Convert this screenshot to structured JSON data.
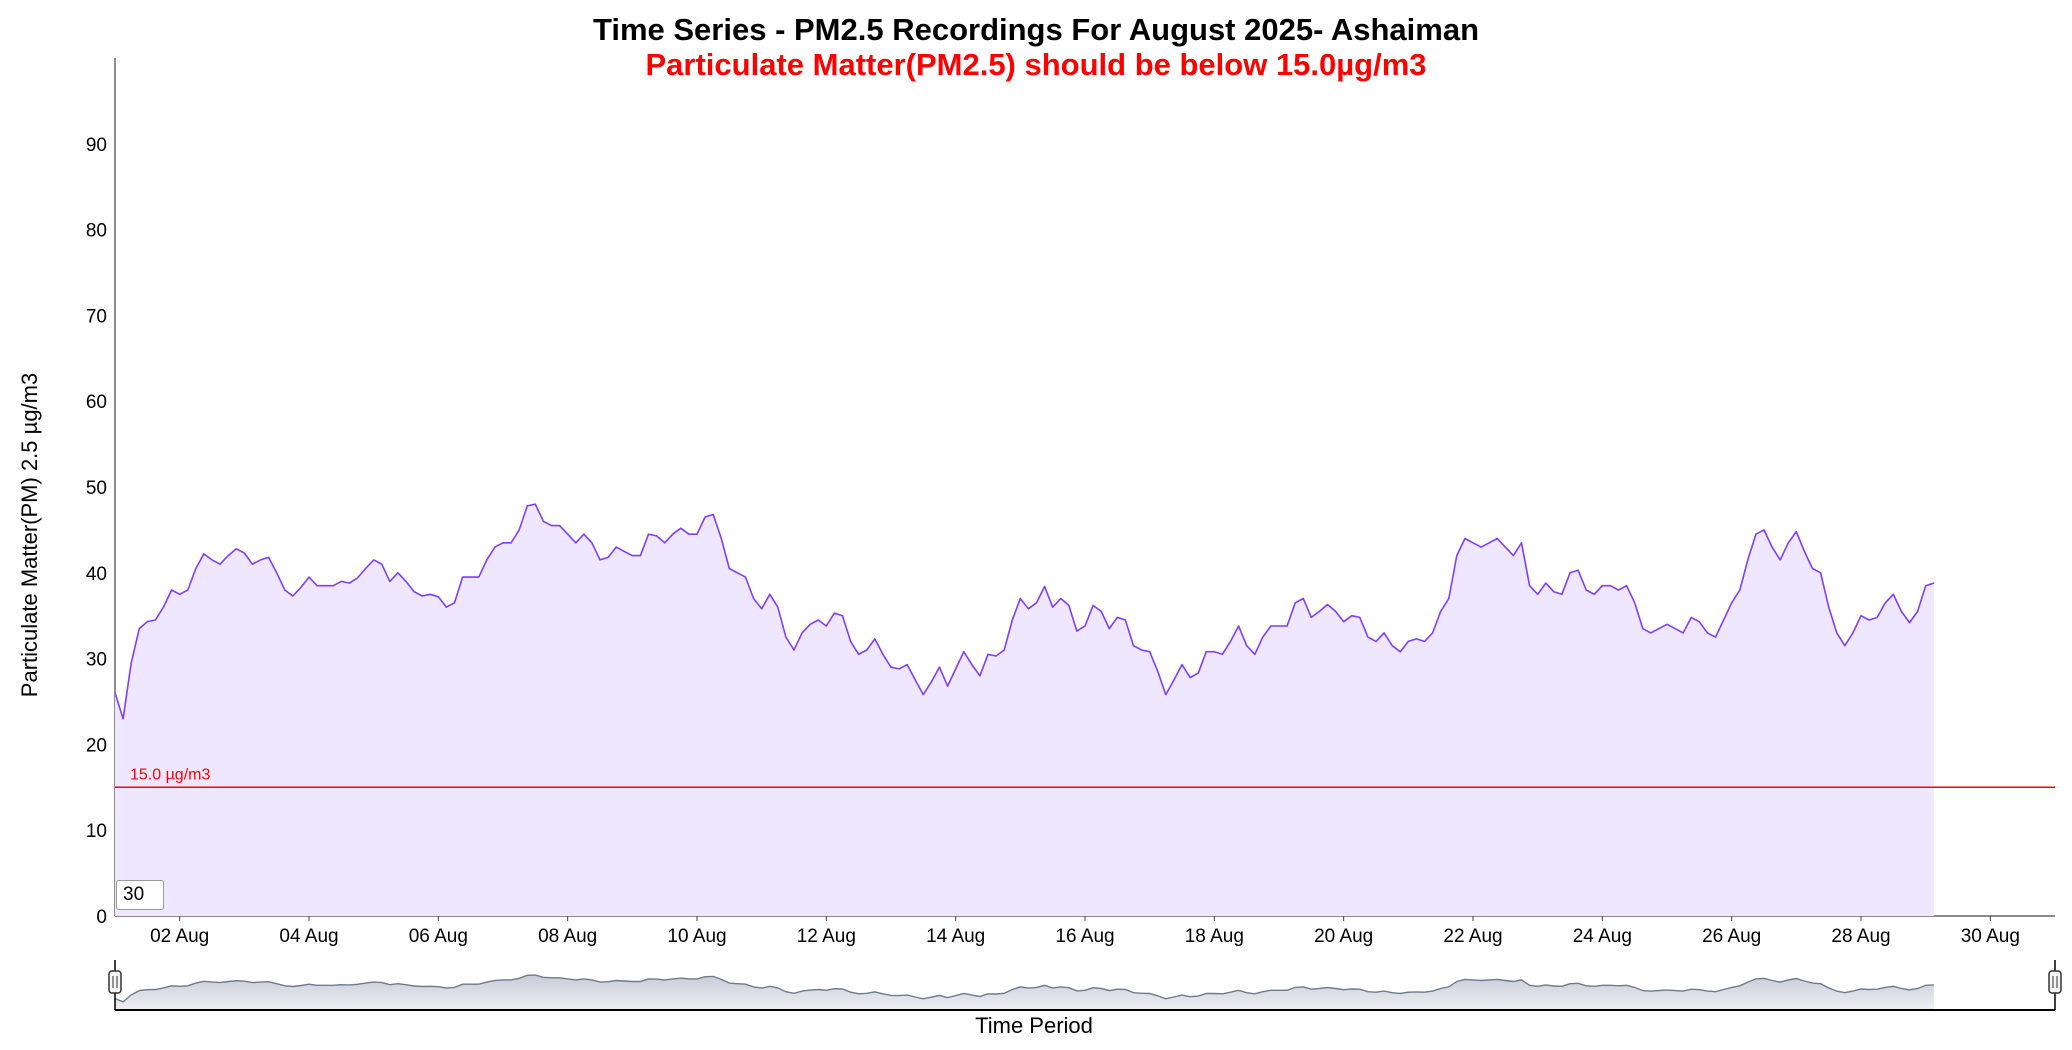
{
  "chart_data": {
    "type": "area",
    "title": "Time Series - PM2.5 Recordings For August 2025- Ashaiman",
    "subtitle": "Particulate Matter(PM2.5) should be below 15.0µg/m3",
    "xlabel": "Time Period",
    "ylabel": "Particulate Matter(PM) 2.5 µg/m3",
    "ylim": [
      0,
      100
    ],
    "yticks": [
      0,
      10,
      20,
      30,
      40,
      50,
      60,
      70,
      80,
      90
    ],
    "xlim": [
      "2025-08-01",
      "2025-08-31"
    ],
    "xticks": [
      "02 Aug",
      "04 Aug",
      "06 Aug",
      "08 Aug",
      "10 Aug",
      "12 Aug",
      "14 Aug",
      "16 Aug",
      "18 Aug",
      "20 Aug",
      "22 Aug",
      "24 Aug",
      "26 Aug",
      "28 Aug",
      "30 Aug"
    ],
    "xtick_dates": [
      "2025-08-02",
      "2025-08-04",
      "2025-08-06",
      "2025-08-08",
      "2025-08-10",
      "2025-08-12",
      "2025-08-14",
      "2025-08-16",
      "2025-08-18",
      "2025-08-20",
      "2025-08-22",
      "2025-08-24",
      "2025-08-26",
      "2025-08-28",
      "2025-08-30"
    ],
    "threshold": {
      "value": 15.0,
      "label": "15.0 µg/m3",
      "color": "#ff0000"
    },
    "series": [
      {
        "color": "#7f3fff",
        "fill": "#efe6ff",
        "points": [
          [
            "2025-08-01 00:00",
            26
          ],
          [
            "2025-08-01 03:00",
            23
          ],
          [
            "2025-08-01 06:00",
            29.5
          ],
          [
            "2025-08-01 09:00",
            33.5
          ],
          [
            "2025-08-01 12:00",
            34.3
          ],
          [
            "2025-08-01 15:00",
            34.5
          ],
          [
            "2025-08-01 18:00",
            36
          ],
          [
            "2025-08-01 21:00",
            38
          ],
          [
            "2025-08-02 00:00",
            37.5
          ],
          [
            "2025-08-02 03:00",
            38
          ],
          [
            "2025-08-02 06:00",
            40.5
          ],
          [
            "2025-08-02 09:00",
            42.2
          ],
          [
            "2025-08-02 12:00",
            41.5
          ],
          [
            "2025-08-02 15:00",
            41
          ],
          [
            "2025-08-02 18:00",
            42
          ],
          [
            "2025-08-02 21:00",
            42.8
          ],
          [
            "2025-08-03 00:00",
            42.3
          ],
          [
            "2025-08-03 03:00",
            41
          ],
          [
            "2025-08-03 06:00",
            41.5
          ],
          [
            "2025-08-03 09:00",
            41.8
          ],
          [
            "2025-08-03 12:00",
            40
          ],
          [
            "2025-08-03 15:00",
            38
          ],
          [
            "2025-08-03 18:00",
            37.3
          ],
          [
            "2025-08-03 21:00",
            38.3
          ],
          [
            "2025-08-04 00:00",
            39.5
          ],
          [
            "2025-08-04 03:00",
            38.5
          ],
          [
            "2025-08-04 06:00",
            38.5
          ],
          [
            "2025-08-04 09:00",
            38.5
          ],
          [
            "2025-08-04 12:00",
            39
          ],
          [
            "2025-08-04 15:00",
            38.8
          ],
          [
            "2025-08-04 18:00",
            39.4
          ],
          [
            "2025-08-04 21:00",
            40.5
          ],
          [
            "2025-08-05 00:00",
            41.5
          ],
          [
            "2025-08-05 03:00",
            41
          ],
          [
            "2025-08-05 06:00",
            39
          ],
          [
            "2025-08-05 09:00",
            40
          ],
          [
            "2025-08-05 12:00",
            39
          ],
          [
            "2025-08-05 15:00",
            37.8
          ],
          [
            "2025-08-05 18:00",
            37.3
          ],
          [
            "2025-08-05 21:00",
            37.5
          ],
          [
            "2025-08-06 00:00",
            37.2
          ],
          [
            "2025-08-06 03:00",
            36
          ],
          [
            "2025-08-06 06:00",
            36.5
          ],
          [
            "2025-08-06 09:00",
            39.5
          ],
          [
            "2025-08-06 12:00",
            39.5
          ],
          [
            "2025-08-06 15:00",
            39.5
          ],
          [
            "2025-08-06 18:00",
            41.5
          ],
          [
            "2025-08-06 21:00",
            43
          ],
          [
            "2025-08-07 00:00",
            43.5
          ],
          [
            "2025-08-07 03:00",
            43.5
          ],
          [
            "2025-08-07 06:00",
            45
          ],
          [
            "2025-08-07 09:00",
            47.8
          ],
          [
            "2025-08-07 12:00",
            48
          ],
          [
            "2025-08-07 15:00",
            46
          ],
          [
            "2025-08-07 18:00",
            45.5
          ],
          [
            "2025-08-07 21:00",
            45.5
          ],
          [
            "2025-08-08 00:00",
            44.5
          ],
          [
            "2025-08-08 03:00",
            43.5
          ],
          [
            "2025-08-08 06:00",
            44.5
          ],
          [
            "2025-08-08 09:00",
            43.5
          ],
          [
            "2025-08-08 12:00",
            41.5
          ],
          [
            "2025-08-08 15:00",
            41.8
          ],
          [
            "2025-08-08 18:00",
            43
          ],
          [
            "2025-08-08 21:00",
            42.5
          ],
          [
            "2025-08-09 00:00",
            42
          ],
          [
            "2025-08-09 03:00",
            42
          ],
          [
            "2025-08-09 06:00",
            44.5
          ],
          [
            "2025-08-09 09:00",
            44.3
          ],
          [
            "2025-08-09 12:00",
            43.5
          ],
          [
            "2025-08-09 15:00",
            44.5
          ],
          [
            "2025-08-09 18:00",
            45.2
          ],
          [
            "2025-08-09 21:00",
            44.5
          ],
          [
            "2025-08-10 00:00",
            44.5
          ],
          [
            "2025-08-10 03:00",
            46.5
          ],
          [
            "2025-08-10 06:00",
            46.8
          ],
          [
            "2025-08-10 09:00",
            44
          ],
          [
            "2025-08-10 12:00",
            40.5
          ],
          [
            "2025-08-10 15:00",
            40
          ],
          [
            "2025-08-10 18:00",
            39.5
          ],
          [
            "2025-08-10 21:00",
            37
          ],
          [
            "2025-08-11 00:00",
            35.8
          ],
          [
            "2025-08-11 03:00",
            37.5
          ],
          [
            "2025-08-11 06:00",
            36
          ],
          [
            "2025-08-11 09:00",
            32.5
          ],
          [
            "2025-08-11 12:00",
            31
          ],
          [
            "2025-08-11 15:00",
            33
          ],
          [
            "2025-08-11 18:00",
            34
          ],
          [
            "2025-08-11 21:00",
            34.5
          ],
          [
            "2025-08-12 00:00",
            33.8
          ],
          [
            "2025-08-12 03:00",
            35.3
          ],
          [
            "2025-08-12 06:00",
            35
          ],
          [
            "2025-08-12 09:00",
            32
          ],
          [
            "2025-08-12 12:00",
            30.5
          ],
          [
            "2025-08-12 15:00",
            31
          ],
          [
            "2025-08-12 18:00",
            32.3
          ],
          [
            "2025-08-12 21:00",
            30.5
          ],
          [
            "2025-08-13 00:00",
            29
          ],
          [
            "2025-08-13 03:00",
            28.8
          ],
          [
            "2025-08-13 06:00",
            29.3
          ],
          [
            "2025-08-13 09:00",
            27.5
          ],
          [
            "2025-08-13 12:00",
            25.8
          ],
          [
            "2025-08-13 15:00",
            27.3
          ],
          [
            "2025-08-13 18:00",
            29
          ],
          [
            "2025-08-13 21:00",
            26.8
          ],
          [
            "2025-08-14 00:00",
            28.8
          ],
          [
            "2025-08-14 03:00",
            30.8
          ],
          [
            "2025-08-14 06:00",
            29.3
          ],
          [
            "2025-08-14 09:00",
            28
          ],
          [
            "2025-08-14 12:00",
            30.5
          ],
          [
            "2025-08-14 15:00",
            30.3
          ],
          [
            "2025-08-14 18:00",
            31
          ],
          [
            "2025-08-14 21:00",
            34.5
          ],
          [
            "2025-08-15 00:00",
            37
          ],
          [
            "2025-08-15 03:00",
            35.8
          ],
          [
            "2025-08-15 06:00",
            36.5
          ],
          [
            "2025-08-15 09:00",
            38.4
          ],
          [
            "2025-08-15 12:00",
            36
          ],
          [
            "2025-08-15 15:00",
            37
          ],
          [
            "2025-08-15 18:00",
            36.2
          ],
          [
            "2025-08-15 21:00",
            33.2
          ],
          [
            "2025-08-16 00:00",
            33.8
          ],
          [
            "2025-08-16 03:00",
            36.2
          ],
          [
            "2025-08-16 06:00",
            35.5
          ],
          [
            "2025-08-16 09:00",
            33.5
          ],
          [
            "2025-08-16 12:00",
            34.8
          ],
          [
            "2025-08-16 15:00",
            34.5
          ],
          [
            "2025-08-16 18:00",
            31.5
          ],
          [
            "2025-08-16 21:00",
            31
          ],
          [
            "2025-08-17 00:00",
            30.8
          ],
          [
            "2025-08-17 03:00",
            28.5
          ],
          [
            "2025-08-17 06:00",
            25.8
          ],
          [
            "2025-08-17 09:00",
            27.5
          ],
          [
            "2025-08-17 12:00",
            29.3
          ],
          [
            "2025-08-17 15:00",
            27.8
          ],
          [
            "2025-08-17 18:00",
            28.3
          ],
          [
            "2025-08-17 21:00",
            30.8
          ],
          [
            "2025-08-18 00:00",
            30.8
          ],
          [
            "2025-08-18 03:00",
            30.5
          ],
          [
            "2025-08-18 06:00",
            32
          ],
          [
            "2025-08-18 09:00",
            33.8
          ],
          [
            "2025-08-18 12:00",
            31.5
          ],
          [
            "2025-08-18 15:00",
            30.5
          ],
          [
            "2025-08-18 18:00",
            32.5
          ],
          [
            "2025-08-18 21:00",
            33.8
          ],
          [
            "2025-08-19 00:00",
            33.8
          ],
          [
            "2025-08-19 03:00",
            33.8
          ],
          [
            "2025-08-19 06:00",
            36.5
          ],
          [
            "2025-08-19 09:00",
            37
          ],
          [
            "2025-08-19 12:00",
            34.8
          ],
          [
            "2025-08-19 15:00",
            35.5
          ],
          [
            "2025-08-19 18:00",
            36.3
          ],
          [
            "2025-08-19 21:00",
            35.5
          ],
          [
            "2025-08-20 00:00",
            34.3
          ],
          [
            "2025-08-20 03:00",
            35
          ],
          [
            "2025-08-20 06:00",
            34.8
          ],
          [
            "2025-08-20 09:00",
            32.5
          ],
          [
            "2025-08-20 12:00",
            32
          ],
          [
            "2025-08-20 15:00",
            33
          ],
          [
            "2025-08-20 18:00",
            31.5
          ],
          [
            "2025-08-20 21:00",
            30.8
          ],
          [
            "2025-08-21 00:00",
            32
          ],
          [
            "2025-08-21 03:00",
            32.3
          ],
          [
            "2025-08-21 06:00",
            32
          ],
          [
            "2025-08-21 09:00",
            33
          ],
          [
            "2025-08-21 12:00",
            35.5
          ],
          [
            "2025-08-21 15:00",
            37
          ],
          [
            "2025-08-21 18:00",
            42
          ],
          [
            "2025-08-21 21:00",
            44
          ],
          [
            "2025-08-22 00:00",
            43.5
          ],
          [
            "2025-08-22 03:00",
            43
          ],
          [
            "2025-08-22 06:00",
            43.5
          ],
          [
            "2025-08-22 09:00",
            44
          ],
          [
            "2025-08-22 12:00",
            43
          ],
          [
            "2025-08-22 15:00",
            42
          ],
          [
            "2025-08-22 18:00",
            43.5
          ],
          [
            "2025-08-22 21:00",
            38.5
          ],
          [
            "2025-08-23 00:00",
            37.5
          ],
          [
            "2025-08-23 03:00",
            38.8
          ],
          [
            "2025-08-23 06:00",
            37.8
          ],
          [
            "2025-08-23 09:00",
            37.5
          ],
          [
            "2025-08-23 12:00",
            40
          ],
          [
            "2025-08-23 15:00",
            40.3
          ],
          [
            "2025-08-23 18:00",
            38
          ],
          [
            "2025-08-23 21:00",
            37.5
          ],
          [
            "2025-08-24 00:00",
            38.5
          ],
          [
            "2025-08-24 03:00",
            38.5
          ],
          [
            "2025-08-24 06:00",
            38
          ],
          [
            "2025-08-24 09:00",
            38.5
          ],
          [
            "2025-08-24 12:00",
            36.5
          ],
          [
            "2025-08-24 15:00",
            33.5
          ],
          [
            "2025-08-24 18:00",
            33
          ],
          [
            "2025-08-24 21:00",
            33.5
          ],
          [
            "2025-08-25 00:00",
            34
          ],
          [
            "2025-08-25 03:00",
            33.5
          ],
          [
            "2025-08-25 06:00",
            33
          ],
          [
            "2025-08-25 09:00",
            34.8
          ],
          [
            "2025-08-25 12:00",
            34.3
          ],
          [
            "2025-08-25 15:00",
            33
          ],
          [
            "2025-08-25 18:00",
            32.5
          ],
          [
            "2025-08-25 21:00",
            34.5
          ],
          [
            "2025-08-26 00:00",
            36.5
          ],
          [
            "2025-08-26 03:00",
            38
          ],
          [
            "2025-08-26 06:00",
            41.5
          ],
          [
            "2025-08-26 09:00",
            44.5
          ],
          [
            "2025-08-26 12:00",
            45
          ],
          [
            "2025-08-26 15:00",
            43
          ],
          [
            "2025-08-26 18:00",
            41.5
          ],
          [
            "2025-08-26 21:00",
            43.5
          ],
          [
            "2025-08-27 00:00",
            44.8
          ],
          [
            "2025-08-27 03:00",
            42.5
          ],
          [
            "2025-08-27 06:00",
            40.5
          ],
          [
            "2025-08-27 09:00",
            40
          ],
          [
            "2025-08-27 12:00",
            36
          ],
          [
            "2025-08-27 15:00",
            33
          ],
          [
            "2025-08-27 18:00",
            31.5
          ],
          [
            "2025-08-27 21:00",
            33
          ],
          [
            "2025-08-28 00:00",
            35
          ],
          [
            "2025-08-28 03:00",
            34.5
          ],
          [
            "2025-08-28 06:00",
            34.8
          ],
          [
            "2025-08-28 09:00",
            36.5
          ],
          [
            "2025-08-28 12:00",
            37.5
          ],
          [
            "2025-08-28 15:00",
            35.5
          ],
          [
            "2025-08-28 18:00",
            34.2
          ],
          [
            "2025-08-28 21:00",
            35.5
          ],
          [
            "2025-08-29 00:00",
            38.5
          ],
          [
            "2025-08-29 03:00",
            38.8
          ]
        ]
      }
    ]
  },
  "controls": {
    "rolling_period_value": "30"
  }
}
